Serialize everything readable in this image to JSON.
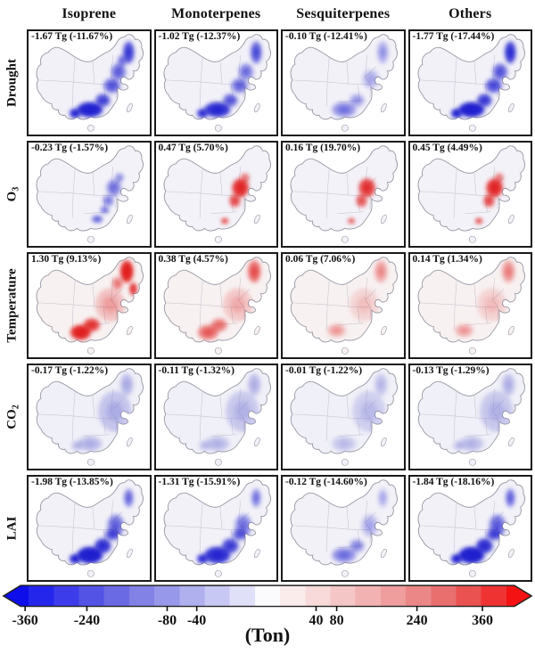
{
  "figure": {
    "headers": [
      "Isoprene",
      "Monoterpenes",
      "Sesquiterpenes",
      "Others"
    ],
    "rows": [
      {
        "label": {
          "main": "Drought",
          "sub": ""
        },
        "base_fill": "#f2f1f8",
        "panels": [
          {
            "annotation": "-1.67 Tg (-11.67%)",
            "color": "#1d1dcf",
            "blobs": [
              [
                105,
                25,
                6,
                12,
                0.7
              ],
              [
                94,
                46,
                8,
                9,
                0.5
              ],
              [
                87,
                61,
                9,
                8,
                0.55
              ],
              [
                63,
                87,
                14,
                8,
                0.92
              ],
              [
                47,
                91,
                6,
                5,
                0.85
              ],
              [
                77,
                77,
                8,
                7,
                0.65
              ],
              [
                98,
                34,
                5,
                6,
                0.45
              ]
            ]
          },
          {
            "annotation": "-1.02 Tg (-12.37%)",
            "color": "#1d1dcf",
            "blobs": [
              [
                105,
                25,
                6,
                12,
                0.6
              ],
              [
                94,
                46,
                8,
                9,
                0.42
              ],
              [
                87,
                61,
                9,
                8,
                0.48
              ],
              [
                63,
                87,
                14,
                8,
                0.85
              ],
              [
                47,
                91,
                6,
                5,
                0.78
              ],
              [
                77,
                77,
                8,
                7,
                0.55
              ]
            ]
          },
          {
            "annotation": "-0.10 Tg (-12.41%)",
            "color": "#1d1dcf",
            "blobs": [
              [
                105,
                25,
                6,
                12,
                0.28
              ],
              [
                92,
                54,
                9,
                10,
                0.22
              ],
              [
                63,
                87,
                13,
                8,
                0.4
              ],
              [
                77,
                77,
                8,
                7,
                0.28
              ]
            ]
          },
          {
            "annotation": "-1.77 Tg (-17.44%)",
            "color": "#1d1dcf",
            "blobs": [
              [
                105,
                25,
                6,
                12,
                0.78
              ],
              [
                94,
                46,
                8,
                9,
                0.55
              ],
              [
                87,
                61,
                9,
                8,
                0.6
              ],
              [
                63,
                87,
                14,
                8,
                0.95
              ],
              [
                47,
                91,
                6,
                5,
                0.88
              ],
              [
                77,
                77,
                8,
                7,
                0.7
              ]
            ]
          }
        ]
      },
      {
        "label": {
          "main": "O",
          "sub": "3"
        },
        "base_fill": "#f3f2f8",
        "panels": [
          {
            "annotation": "-0.23 Tg (-1.57%)",
            "color": "#2a2ad0",
            "blobs": [
              [
                89,
                51,
                8,
                9,
                0.45
              ],
              [
                83,
                65,
                6,
                6,
                0.42
              ],
              [
                71,
                85,
                6,
                4,
                0.55
              ],
              [
                79,
                75,
                5,
                4,
                0.45
              ],
              [
                95,
                40,
                5,
                5,
                0.35
              ]
            ]
          },
          {
            "annotation": "0.47 Tg (5.70%)",
            "color": "#e01717",
            "blobs": [
              [
                88,
                51,
                9,
                10,
                0.8
              ],
              [
                82,
                65,
                6,
                7,
                0.6
              ],
              [
                71,
                87,
                4,
                3,
                0.65
              ],
              [
                93,
                40,
                5,
                5,
                0.4
              ]
            ]
          },
          {
            "annotation": "0.16 Tg (19.70%)",
            "color": "#e01717",
            "blobs": [
              [
                88,
                51,
                9,
                10,
                0.72
              ],
              [
                82,
                65,
                6,
                7,
                0.55
              ],
              [
                71,
                87,
                4,
                3,
                0.55
              ]
            ]
          },
          {
            "annotation": "0.45 Tg (4.49%)",
            "color": "#e01717",
            "blobs": [
              [
                88,
                51,
                9,
                10,
                0.8
              ],
              [
                82,
                65,
                6,
                7,
                0.6
              ],
              [
                71,
                87,
                4,
                3,
                0.65
              ],
              [
                93,
                40,
                5,
                5,
                0.4
              ]
            ]
          }
        ]
      },
      {
        "label": {
          "main": "Temperature",
          "sub": ""
        },
        "base_fill": "#f8f1f1",
        "panels": [
          {
            "annotation": "1.30 Tg (9.13%)",
            "color": "#e01717",
            "blobs": [
              [
                103,
                21,
                7,
                12,
                0.88
              ],
              [
                110,
                40,
                4,
                7,
                0.75
              ],
              [
                53,
                87,
                11,
                8,
                0.88
              ],
              [
                65,
                79,
                9,
                7,
                0.7
              ],
              [
                85,
                57,
                16,
                18,
                0.22
              ],
              [
                93,
                34,
                6,
                7,
                0.4
              ]
            ]
          },
          {
            "annotation": "0.38 Tg (4.57%)",
            "color": "#e01717",
            "blobs": [
              [
                103,
                21,
                7,
                12,
                0.55
              ],
              [
                53,
                87,
                11,
                8,
                0.5
              ],
              [
                65,
                79,
                9,
                7,
                0.42
              ],
              [
                85,
                57,
                16,
                18,
                0.18
              ]
            ]
          },
          {
            "annotation": "0.06 Tg (7.06%)",
            "color": "#e01717",
            "blobs": [
              [
                103,
                21,
                7,
                12,
                0.3
              ],
              [
                85,
                57,
                16,
                18,
                0.12
              ],
              [
                55,
                85,
                10,
                7,
                0.26
              ]
            ]
          },
          {
            "annotation": "0.14 Tg (1.34%)",
            "color": "#e01717",
            "blobs": [
              [
                103,
                21,
                7,
                12,
                0.35
              ],
              [
                85,
                57,
                16,
                18,
                0.13
              ],
              [
                55,
                85,
                10,
                7,
                0.26
              ]
            ]
          }
        ]
      },
      {
        "label": {
          "main": "CO",
          "sub": "2"
        },
        "base_fill": "#f0f0f8",
        "panels": [
          {
            "annotation": "-0.17 Tg (-1.22%)",
            "color": "#8585da",
            "blobs": [
              [
                90,
                52,
                18,
                22,
                0.4
              ],
              [
                103,
                23,
                7,
                12,
                0.45
              ],
              [
                63,
                87,
                13,
                8,
                0.42
              ],
              [
                49,
                89,
                6,
                5,
                0.36
              ]
            ]
          },
          {
            "annotation": "-0.11 Tg (-1.32%)",
            "color": "#8585da",
            "blobs": [
              [
                90,
                52,
                18,
                22,
                0.36
              ],
              [
                103,
                23,
                7,
                12,
                0.42
              ],
              [
                63,
                87,
                13,
                8,
                0.38
              ],
              [
                49,
                89,
                6,
                5,
                0.33
              ]
            ]
          },
          {
            "annotation": "-0.01 Tg (-1.22%)",
            "color": "#8585da",
            "blobs": [
              [
                90,
                52,
                18,
                22,
                0.3
              ],
              [
                103,
                23,
                7,
                12,
                0.35
              ],
              [
                63,
                87,
                13,
                8,
                0.32
              ]
            ]
          },
          {
            "annotation": "-0.13 Tg (-1.29%)",
            "color": "#8585da",
            "blobs": [
              [
                90,
                52,
                18,
                22,
                0.36
              ],
              [
                103,
                23,
                7,
                12,
                0.42
              ],
              [
                63,
                87,
                13,
                8,
                0.38
              ],
              [
                49,
                89,
                6,
                5,
                0.33
              ]
            ]
          }
        ]
      },
      {
        "label": {
          "main": "LAI",
          "sub": ""
        },
        "base_fill": "#f2f1f8",
        "panels": [
          {
            "annotation": "-1.98 Tg (-13.85%)",
            "color": "#1d1dcf",
            "blobs": [
              [
                63,
                87,
                14,
                9,
                0.95
              ],
              [
                47,
                91,
                6,
                5,
                0.88
              ],
              [
                77,
                77,
                9,
                8,
                0.78
              ],
              [
                91,
                55,
                9,
                12,
                0.48
              ],
              [
                105,
                25,
                5,
                10,
                0.48
              ],
              [
                87,
                65,
                8,
                6,
                0.58
              ]
            ]
          },
          {
            "annotation": "-1.31 Tg (-15.91%)",
            "color": "#1d1dcf",
            "blobs": [
              [
                63,
                87,
                14,
                9,
                0.85
              ],
              [
                47,
                91,
                6,
                5,
                0.8
              ],
              [
                77,
                77,
                9,
                8,
                0.68
              ],
              [
                91,
                55,
                9,
                12,
                0.42
              ],
              [
                105,
                25,
                5,
                10,
                0.42
              ],
              [
                87,
                65,
                8,
                6,
                0.5
              ]
            ]
          },
          {
            "annotation": "-0.12 Tg (-14.60%)",
            "color": "#1d1dcf",
            "blobs": [
              [
                63,
                87,
                13,
                8,
                0.42
              ],
              [
                77,
                77,
                8,
                7,
                0.35
              ],
              [
                91,
                55,
                9,
                12,
                0.22
              ],
              [
                105,
                25,
                5,
                10,
                0.22
              ]
            ]
          },
          {
            "annotation": "-1.84 Tg (-18.16%)",
            "color": "#1d1dcf",
            "blobs": [
              [
                63,
                87,
                14,
                9,
                0.95
              ],
              [
                47,
                91,
                6,
                5,
                0.88
              ],
              [
                77,
                77,
                9,
                8,
                0.8
              ],
              [
                91,
                55,
                9,
                12,
                0.5
              ],
              [
                105,
                25,
                5,
                10,
                0.5
              ],
              [
                87,
                65,
                8,
                6,
                0.6
              ]
            ]
          }
        ]
      }
    ],
    "colorbar": {
      "unit_label": "(Ton)",
      "left_color": "#0d0eea",
      "right_color": "#f51212",
      "palette": [
        "#0d0eea",
        "#2526ec",
        "#3c3cea",
        "#5353e6",
        "#6a6ae4",
        "#8181e6",
        "#9898ea",
        "#b0b0ef",
        "#c8c8f4",
        "#e0e0f9",
        "#fbfbfe",
        "#fbecec",
        "#f8dada",
        "#f5c6c6",
        "#f2b2b2",
        "#ef9d9d",
        "#ec8787",
        "#e96e6e",
        "#ea5252",
        "#ef3333",
        "#f51212"
      ],
      "ticks": [
        {
          "label": "-360",
          "pos": 4.1
        },
        {
          "label": "-240",
          "pos": 15.8
        },
        {
          "label": "-80",
          "pos": 31.0
        },
        {
          "label": "-40",
          "pos": 36.6
        },
        {
          "label": "40",
          "pos": 59.2
        },
        {
          "label": "80",
          "pos": 63.1
        },
        {
          "label": "240",
          "pos": 78.3
        },
        {
          "label": "360",
          "pos": 90.7
        }
      ]
    }
  },
  "chart_data": {
    "type": "heatmap",
    "title": "Changes in BVOC emissions over China by driving factor and species",
    "columns": [
      "Isoprene",
      "Monoterpenes",
      "Sesquiterpenes",
      "Others"
    ],
    "rows": [
      "Drought",
      "O3",
      "Temperature",
      "CO2",
      "LAI"
    ],
    "values_tg": [
      [
        -1.67,
        -1.02,
        -0.1,
        -1.77
      ],
      [
        -0.23,
        0.47,
        0.16,
        0.45
      ],
      [
        1.3,
        0.38,
        0.06,
        0.14
      ],
      [
        -0.17,
        -0.11,
        -0.01,
        -0.13
      ],
      [
        -1.98,
        -1.31,
        -0.12,
        -1.84
      ]
    ],
    "values_percent": [
      [
        -11.67,
        -12.37,
        -12.41,
        -17.44
      ],
      [
        -1.57,
        5.7,
        19.7,
        4.49
      ],
      [
        9.13,
        4.57,
        7.06,
        1.34
      ],
      [
        -1.22,
        -1.32,
        -1.22,
        -1.29
      ],
      [
        -13.85,
        -15.91,
        -14.6,
        -18.16
      ]
    ],
    "colorbar": {
      "unit": "(Ton)",
      "ticks": [
        -360,
        -240,
        -80,
        -40,
        40,
        80,
        240,
        360
      ],
      "range": [
        -400,
        400
      ],
      "palette": "blue-white-red diverging, discrete, arrow ends"
    },
    "legend_position": "bottom"
  }
}
